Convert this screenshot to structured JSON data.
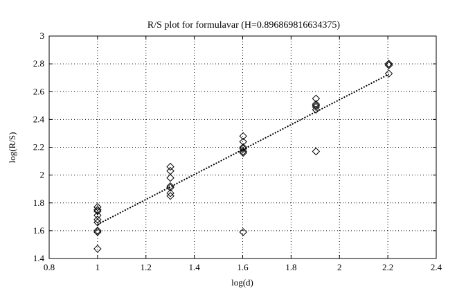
{
  "chart_data": {
    "type": "scatter",
    "title": "R/S plot for formulavar (H=0.896869816634375)",
    "xlabel": "log(d)",
    "ylabel": "log(R/S)",
    "xlim": [
      0.8,
      2.4
    ],
    "ylim": [
      1.4,
      3.0
    ],
    "xticks": [
      0.8,
      1,
      1.2,
      1.4,
      1.6,
      1.8,
      2,
      2.2,
      2.4
    ],
    "yticks": [
      1.4,
      1.6,
      1.8,
      2,
      2.2,
      2.4,
      2.6,
      2.8,
      3
    ],
    "xtick_labels": [
      "0.8",
      "1",
      "1.2",
      "1.4",
      "1.6",
      "1.8",
      "2",
      "2.2",
      "2.4"
    ],
    "ytick_labels": [
      "1.4",
      "1.6",
      "1.8",
      "2",
      "2.2",
      "2.4",
      "2.6",
      "2.8",
      "3"
    ],
    "grid": true,
    "grid_style": "dotted",
    "marker": "diamond",
    "marker_color": "#000000",
    "series": [
      {
        "points": [
          [
            1.0,
            1.47
          ],
          [
            1.0,
            1.59
          ],
          [
            1.0,
            1.6
          ],
          [
            1.0,
            1.66
          ],
          [
            1.0,
            1.68
          ],
          [
            1.0,
            1.71
          ],
          [
            1.0,
            1.74
          ],
          [
            1.0,
            1.75
          ],
          [
            1.0,
            1.77
          ],
          [
            1.301,
            1.85
          ],
          [
            1.301,
            1.87
          ],
          [
            1.301,
            1.91
          ],
          [
            1.301,
            1.92
          ],
          [
            1.301,
            1.98
          ],
          [
            1.301,
            2.03
          ],
          [
            1.301,
            2.06
          ],
          [
            1.602,
            1.59
          ],
          [
            1.602,
            2.16
          ],
          [
            1.602,
            2.17
          ],
          [
            1.602,
            2.19
          ],
          [
            1.602,
            2.2
          ],
          [
            1.602,
            2.24
          ],
          [
            1.602,
            2.28
          ],
          [
            1.903,
            2.17
          ],
          [
            1.903,
            2.47
          ],
          [
            1.903,
            2.49
          ],
          [
            1.903,
            2.5
          ],
          [
            1.903,
            2.51
          ],
          [
            1.903,
            2.55
          ],
          [
            2.204,
            2.73
          ],
          [
            2.204,
            2.79
          ],
          [
            2.204,
            2.8
          ],
          [
            2.204,
            2.8
          ]
        ]
      }
    ],
    "fit_line": {
      "style": "dotted",
      "x": [
        1.0,
        2.204
      ],
      "y": [
        1.645,
        2.725
      ]
    }
  }
}
